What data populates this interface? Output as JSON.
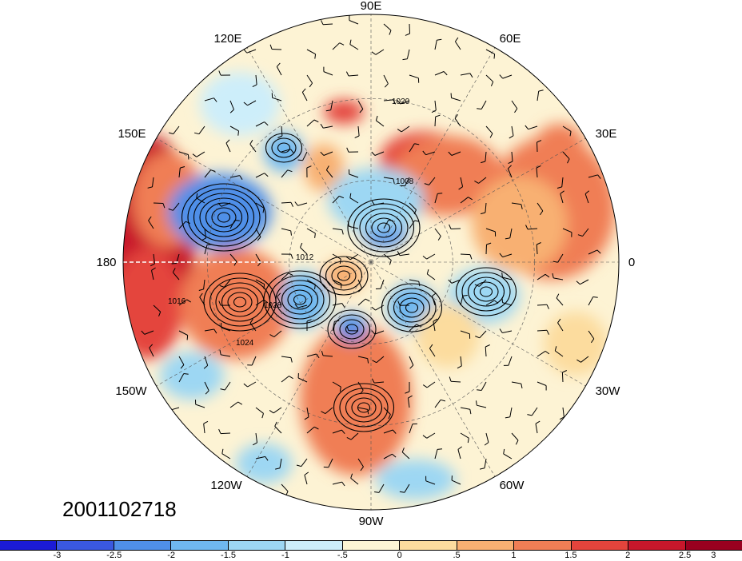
{
  "map": {
    "projection": "north-polar-stereographic",
    "longitude_labels": [
      {
        "text": "90E"
      },
      {
        "text": "60E"
      },
      {
        "text": "30E"
      },
      {
        "text": "0"
      },
      {
        "text": "30W"
      },
      {
        "text": "60W"
      },
      {
        "text": "90W"
      },
      {
        "text": "120W"
      },
      {
        "text": "150W"
      },
      {
        "text": "180"
      },
      {
        "text": "150E"
      },
      {
        "text": "120E"
      }
    ],
    "contour_labels": [
      "1012",
      "1020",
      "1008",
      "1024",
      "1016",
      "1028"
    ],
    "date_label": "2001102718"
  },
  "colorbar": {
    "colors": [
      "#1b1bd6",
      "#3a58e0",
      "#4f8fe8",
      "#6fb8f0",
      "#9dd7f3",
      "#cdeefa",
      "#fdf6d5",
      "#fcdc9e",
      "#f8b072",
      "#f07e55",
      "#e4443c",
      "#c7172b",
      "#99001f"
    ],
    "labels": [
      "-3",
      "-2.5",
      "-2",
      "-1.5",
      "-1",
      "-.5",
      "0",
      ".5",
      "1",
      "1.5",
      "2",
      "2.5",
      "3"
    ]
  }
}
